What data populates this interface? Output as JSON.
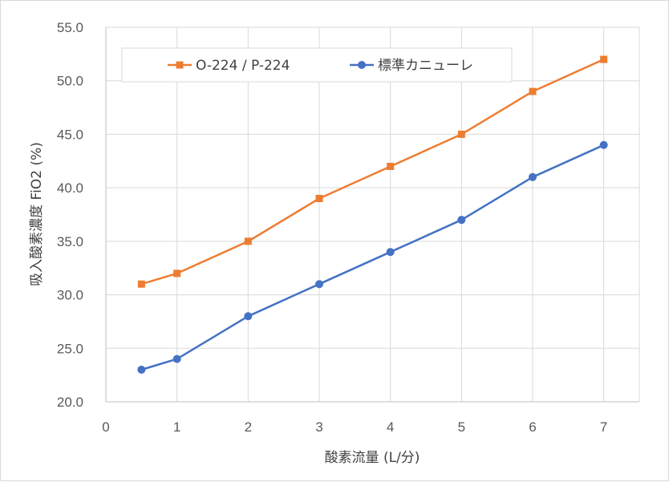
{
  "chart_data": {
    "type": "scatter",
    "mode": "lines+markers",
    "xlabel": "酸素流量 (L/分)",
    "ylabel": "吸入酸素濃度 FiO2 (%)",
    "xlim": [
      0,
      7.5
    ],
    "ylim": [
      20.0,
      55.0
    ],
    "xticks": [
      "0",
      "1",
      "2",
      "3",
      "4",
      "5",
      "6",
      "7"
    ],
    "yticks": [
      "20.0",
      "25.0",
      "30.0",
      "35.0",
      "40.0",
      "45.0",
      "50.0",
      "55.0"
    ],
    "grid": true,
    "legend_position": "top",
    "series": [
      {
        "name": "O-224 / P-224",
        "color": "#ED7D31",
        "marker": "square",
        "x": [
          0.5,
          1,
          2,
          3,
          4,
          5,
          6,
          7
        ],
        "y": [
          31,
          32,
          35,
          39,
          42,
          45,
          49,
          52
        ]
      },
      {
        "name": "標準カニューレ",
        "color": "#4472C4",
        "marker": "circle",
        "x": [
          0.5,
          1,
          2,
          3,
          4,
          5,
          6,
          7
        ],
        "y": [
          23,
          24,
          28,
          31,
          34,
          37,
          41,
          44
        ]
      }
    ]
  }
}
